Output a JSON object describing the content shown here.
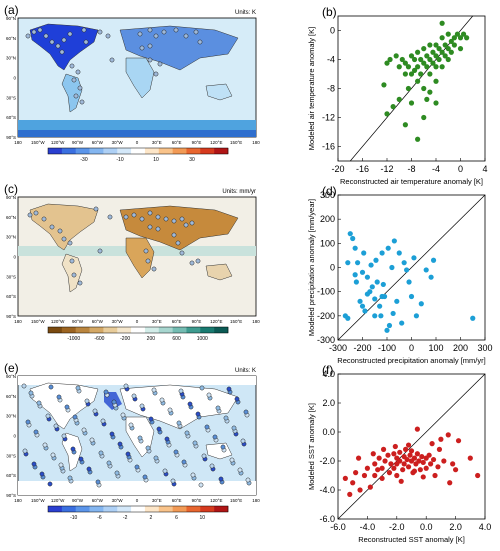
{
  "panels": {
    "a": {
      "label": "(a)",
      "units": "Units: K"
    },
    "b": {
      "label": "(b)"
    },
    "c": {
      "label": "(c)",
      "units": "Units: mm/yr"
    },
    "d": {
      "label": "(d)"
    },
    "e": {
      "label": "(e)",
      "units": "Units: K"
    },
    "f": {
      "label": "(f)"
    }
  },
  "map": {
    "lat_labels": [
      "90°N",
      "60°N",
      "30°N",
      "0",
      "30°S",
      "60°S",
      "90°S"
    ],
    "lon_labels": [
      "180",
      "150°W",
      "120°W",
      "90°W",
      "60°W",
      "30°W",
      "0",
      "30°E",
      "60°E",
      "90°E",
      "120°E",
      "150°E",
      "180"
    ]
  },
  "colorbars": {
    "a": {
      "ticks": [
        "-30",
        "-10",
        "10",
        "30"
      ]
    },
    "c": {
      "ticks": [
        "-1000",
        "-600",
        "-200",
        "200",
        "600",
        "1000"
      ]
    },
    "e": {
      "ticks": [
        "-10",
        "-6",
        "-2",
        "2",
        "6",
        "10"
      ]
    }
  },
  "chart_data": [
    {
      "type": "scatter",
      "panel": "(b)",
      "xlabel": "Reconstructed air temperature anomaly  [K]",
      "ylabel": "Modeled air temperature anomaly  [K]",
      "xlim": [
        -20,
        4
      ],
      "ylim": [
        -18,
        2
      ],
      "xticks": [
        "-20",
        "-16",
        "-12",
        "-8",
        "-4",
        "0",
        "4"
      ],
      "yticks": [
        "0",
        "-4",
        "-8",
        "-12",
        "-16"
      ],
      "color": "#2e8b22",
      "points": [
        [
          -12,
          -4.5
        ],
        [
          -11.5,
          -4
        ],
        [
          -10.5,
          -3.5
        ],
        [
          -10,
          -5
        ],
        [
          -9.5,
          -4
        ],
        [
          -9,
          -4.5
        ],
        [
          -9,
          -6
        ],
        [
          -8.5,
          -5
        ],
        [
          -8,
          -3.5
        ],
        [
          -8,
          -6
        ],
        [
          -7.5,
          -4
        ],
        [
          -7.5,
          -5.5
        ],
        [
          -7,
          -3
        ],
        [
          -7,
          -5
        ],
        [
          -7,
          -7
        ],
        [
          -6.5,
          -4
        ],
        [
          -6.5,
          -6
        ],
        [
          -6,
          -2.5
        ],
        [
          -6,
          -4.5
        ],
        [
          -6,
          -8
        ],
        [
          -5.5,
          -3.5
        ],
        [
          -5.5,
          -5
        ],
        [
          -5,
          -2
        ],
        [
          -5,
          -4
        ],
        [
          -5,
          -6
        ],
        [
          -4.5,
          -3
        ],
        [
          -4.5,
          -4.5
        ],
        [
          -4,
          -2
        ],
        [
          -4,
          -3.5
        ],
        [
          -4,
          -5
        ],
        [
          -4,
          -7
        ],
        [
          -3.5,
          -2.5
        ],
        [
          -3.5,
          -4
        ],
        [
          -3,
          -1
        ],
        [
          -3,
          -3
        ],
        [
          -3,
          -5
        ],
        [
          -2.5,
          -2
        ],
        [
          -2.5,
          -3.5
        ],
        [
          -2,
          -0.5
        ],
        [
          -2,
          -2.5
        ],
        [
          -2,
          -4
        ],
        [
          -1.5,
          -1.5
        ],
        [
          -1.5,
          -3
        ],
        [
          -1,
          -1
        ],
        [
          -1,
          -2
        ],
        [
          -0.5,
          -0.5
        ],
        [
          0,
          -1
        ],
        [
          0,
          -2.5
        ],
        [
          0.5,
          -0.5
        ],
        [
          1,
          -1
        ],
        [
          -11,
          -10.5
        ],
        [
          -12,
          -11.5
        ],
        [
          -10,
          -9.5
        ],
        [
          -9,
          -13
        ],
        [
          -8,
          -10
        ],
        [
          -7,
          -15
        ],
        [
          -6,
          -12
        ],
        [
          -5.5,
          -9.5
        ],
        [
          -5,
          -8.5
        ],
        [
          -8.5,
          -8
        ],
        [
          -4,
          -10
        ],
        [
          -12.5,
          -7.5
        ],
        [
          -3,
          1
        ]
      ]
    },
    {
      "type": "scatter",
      "panel": "(d)",
      "xlabel": "Reconstructed precipitation anomaly  [mm/yr]",
      "ylabel": "Modeled precipitation anomaly  [mm/year]",
      "xlim": [
        -300,
        300
      ],
      "ylim": [
        -300,
        300
      ],
      "xticks": [
        "-300",
        "-200",
        "-100",
        "0",
        "100",
        "200",
        "300"
      ],
      "yticks": [
        "300",
        "200",
        "100",
        "0",
        "-100",
        "-200",
        "-300"
      ],
      "color": "#1c9fd6",
      "points": [
        [
          -270,
          -200
        ],
        [
          -260,
          20
        ],
        [
          -250,
          140
        ],
        [
          -240,
          120
        ],
        [
          -230,
          80
        ],
        [
          -225,
          -60
        ],
        [
          -220,
          20
        ],
        [
          -210,
          -140
        ],
        [
          -200,
          -20
        ],
        [
          -195,
          60
        ],
        [
          -190,
          -180
        ],
        [
          -180,
          -110
        ],
        [
          -170,
          -100
        ],
        [
          -165,
          10
        ],
        [
          -160,
          -80
        ],
        [
          -150,
          -130
        ],
        [
          -145,
          30
        ],
        [
          -140,
          -60
        ],
        [
          -130,
          -160
        ],
        [
          -125,
          -200
        ],
        [
          -120,
          60
        ],
        [
          -115,
          -70
        ],
        [
          -110,
          -120
        ],
        [
          -100,
          -260
        ],
        [
          -95,
          80
        ],
        [
          -90,
          -240
        ],
        [
          -80,
          0
        ],
        [
          -75,
          -190
        ],
        [
          -70,
          110
        ],
        [
          -60,
          -140
        ],
        [
          -50,
          60
        ],
        [
          -40,
          -230
        ],
        [
          -30,
          20
        ],
        [
          -20,
          -10
        ],
        [
          -10,
          -60
        ],
        [
          0,
          -120
        ],
        [
          10,
          40
        ],
        [
          20,
          -200
        ],
        [
          40,
          -150
        ],
        [
          60,
          -10
        ],
        [
          80,
          -40
        ],
        [
          90,
          30
        ],
        [
          -260,
          -210
        ],
        [
          -230,
          -30
        ],
        [
          -180,
          -40
        ],
        [
          250,
          -210
        ],
        [
          -120,
          -120
        ],
        [
          -200,
          -160
        ],
        [
          -150,
          -200
        ]
      ]
    },
    {
      "type": "scatter",
      "panel": "(f)",
      "xlabel": "Reconstructed SST anomaly  [K]",
      "ylabel": "Modeled SST anomaly  [K]",
      "xlim": [
        -6,
        4
      ],
      "ylim": [
        -6,
        4
      ],
      "xticks": [
        "-6.0",
        "-4.0",
        "-2.0",
        "0.0",
        "2.0",
        "4.0"
      ],
      "yticks": [
        "4.0",
        "2.0",
        "0.0",
        "-2.0",
        "-4.0",
        "-6.0"
      ],
      "color": "#cc1f1f",
      "points": [
        [
          -5.5,
          -3.2
        ],
        [
          -5,
          -3.5
        ],
        [
          -4.8,
          -2.8
        ],
        [
          -4.5,
          -4
        ],
        [
          -4.2,
          -3
        ],
        [
          -4,
          -2.5
        ],
        [
          -3.8,
          -3.8
        ],
        [
          -3.5,
          -2.2
        ],
        [
          -3.5,
          -3
        ],
        [
          -3.2,
          -1.8
        ],
        [
          -3,
          -2.5
        ],
        [
          -3,
          -3.2
        ],
        [
          -2.8,
          -2
        ],
        [
          -2.6,
          -1.6
        ],
        [
          -2.5,
          -2.8
        ],
        [
          -2.4,
          -2.2
        ],
        [
          -2.2,
          -1.5
        ],
        [
          -2.2,
          -2.5
        ],
        [
          -2,
          -1.8
        ],
        [
          -2,
          -2.2
        ],
        [
          -2,
          -3
        ],
        [
          -1.8,
          -1.4
        ],
        [
          -1.8,
          -2
        ],
        [
          -1.6,
          -2.6
        ],
        [
          -1.5,
          -1.7
        ],
        [
          -1.5,
          -2.2
        ],
        [
          -1.4,
          -1.2
        ],
        [
          -1.3,
          -1.9
        ],
        [
          -1.2,
          -2.4
        ],
        [
          -1.1,
          -1.6
        ],
        [
          -1,
          -2
        ],
        [
          -1,
          -1.3
        ],
        [
          -0.9,
          -2.8
        ],
        [
          -0.8,
          -1.8
        ],
        [
          -0.7,
          -2.2
        ],
        [
          -0.6,
          -1.5
        ],
        [
          -0.5,
          -2
        ],
        [
          -0.4,
          -2.6
        ],
        [
          -0.3,
          -1.7
        ],
        [
          -0.2,
          -2.1
        ],
        [
          0,
          -1.8
        ],
        [
          0,
          -2.5
        ],
        [
          0.2,
          -1.6
        ],
        [
          0.3,
          -2.2
        ],
        [
          0.5,
          -1.9
        ],
        [
          0.6,
          -3
        ],
        [
          0.8,
          -2.4
        ],
        [
          1,
          -0.5
        ],
        [
          1.2,
          -2
        ],
        [
          1.5,
          -0.2
        ],
        [
          1.6,
          -3.5
        ],
        [
          1.8,
          -2.2
        ],
        [
          2,
          -2.6
        ],
        [
          2.2,
          -0.6
        ],
        [
          3,
          -1.8
        ],
        [
          3.5,
          -3
        ],
        [
          -3.6,
          -1.5
        ],
        [
          -2.9,
          -1.2
        ],
        [
          -0.6,
          0.2
        ],
        [
          0.4,
          -0.8
        ],
        [
          -1.7,
          -3.4
        ],
        [
          -0.2,
          -3.1
        ],
        [
          -4.6,
          -1.8
        ],
        [
          -5.2,
          -4.3
        ],
        [
          -2.1,
          -1.0
        ],
        [
          0.9,
          -1.2
        ],
        [
          -1.2,
          -0.9
        ],
        [
          -3.3,
          -2.6
        ],
        [
          -0.8,
          -2.7
        ]
      ]
    }
  ]
}
